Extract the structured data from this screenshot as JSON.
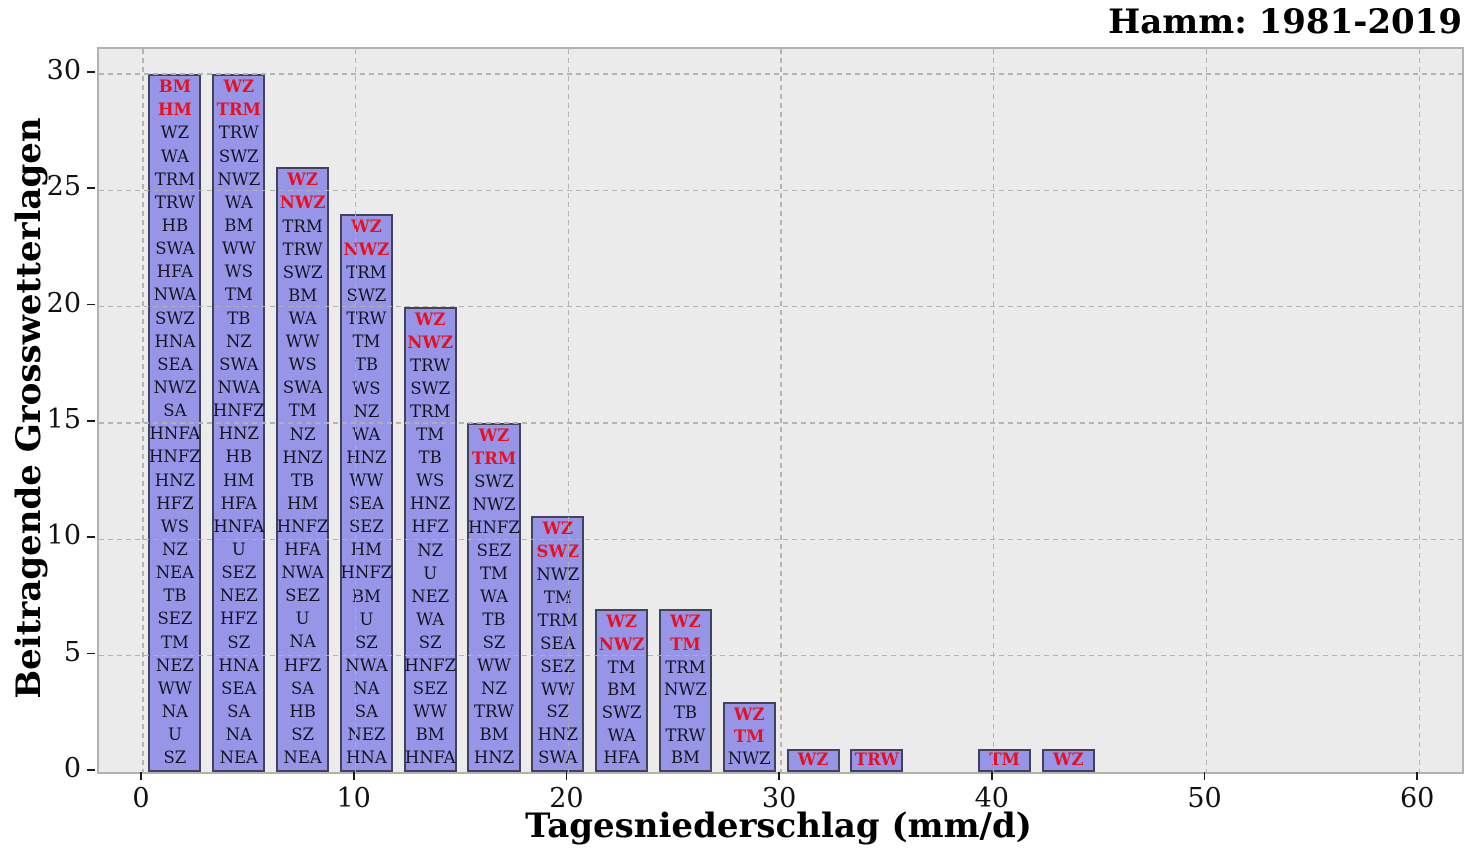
{
  "title": "Hamm: 1981-2019",
  "chart_data": {
    "type": "bar",
    "title": "Hamm: 1981-2019",
    "xlabel": "Tagesniederschlag (mm/d)",
    "ylabel": "Beitragende Grosswetterlagen",
    "xlim": [
      -2.07,
      62.01
    ],
    "ylim": [
      0,
      31.07
    ],
    "xticks": [
      0,
      10,
      20,
      30,
      40,
      50,
      60
    ],
    "yticks": [
      0,
      5,
      10,
      15,
      20,
      25,
      30
    ],
    "grid": "dashed",
    "legend": "none",
    "bar_width": 2.5,
    "colors": {
      "bar_fill": "#9795e8",
      "bar_border": "#42425a",
      "label_black": "#14141e",
      "label_red": "#e8101e",
      "plot_background": "#ebebeb",
      "grid_line": "#b2b2aa"
    },
    "bars": [
      {
        "x": 1.5,
        "height": 30,
        "red_labels": 2,
        "labels": [
          "BM",
          "HM",
          "WZ",
          "WA",
          "TRM",
          "TRW",
          "HB",
          "SWA",
          "HFA",
          "NWA",
          "SWZ",
          "HNA",
          "SEA",
          "NWZ",
          "SA",
          "HNFA",
          "HNFZ",
          "HNZ",
          "HFZ",
          "WS",
          "NZ",
          "NEA",
          "TB",
          "SEZ",
          "TM",
          "NEZ",
          "WW",
          "NA",
          "U",
          "SZ"
        ]
      },
      {
        "x": 4.5,
        "height": 30,
        "red_labels": 2,
        "labels": [
          "WZ",
          "TRM",
          "TRW",
          "SWZ",
          "NWZ",
          "WA",
          "BM",
          "WW",
          "WS",
          "TM",
          "TB",
          "NZ",
          "SWA",
          "NWA",
          "HNFZ",
          "HNZ",
          "HB",
          "HM",
          "HFA",
          "HNFA",
          "U",
          "SEZ",
          "NEZ",
          "HFZ",
          "SZ",
          "HNA",
          "SEA",
          "SA",
          "NA",
          "NEA"
        ]
      },
      {
        "x": 7.5,
        "height": 26,
        "red_labels": 2,
        "labels": [
          "WZ",
          "NWZ",
          "TRM",
          "TRW",
          "SWZ",
          "BM",
          "WA",
          "WW",
          "WS",
          "SWA",
          "TM",
          "NZ",
          "HNZ",
          "TB",
          "HM",
          "HNFZ",
          "HFA",
          "NWA",
          "SEZ",
          "U",
          "NA",
          "HFZ",
          "SA",
          "HB",
          "SZ",
          "NEA"
        ]
      },
      {
        "x": 10.5,
        "height": 24,
        "red_labels": 2,
        "labels": [
          "WZ",
          "NWZ",
          "TRM",
          "SWZ",
          "TRW",
          "TM",
          "TB",
          "WS",
          "NZ",
          "WA",
          "HNZ",
          "WW",
          "SEA",
          "SEZ",
          "HM",
          "HNFZ",
          "BM",
          "U",
          "SZ",
          "NWA",
          "NA",
          "SA",
          "NEZ",
          "HNA"
        ]
      },
      {
        "x": 13.5,
        "height": 20,
        "red_labels": 2,
        "labels": [
          "WZ",
          "NWZ",
          "TRW",
          "SWZ",
          "TRM",
          "TM",
          "TB",
          "WS",
          "HNZ",
          "HFZ",
          "NZ",
          "U",
          "NEZ",
          "WA",
          "SZ",
          "HNFZ",
          "SEZ",
          "WW",
          "BM",
          "HNFA"
        ]
      },
      {
        "x": 16.5,
        "height": 15,
        "red_labels": 2,
        "labels": [
          "WZ",
          "TRM",
          "SWZ",
          "NWZ",
          "HNFZ",
          "SEZ",
          "TM",
          "WA",
          "TB",
          "SZ",
          "WW",
          "NZ",
          "TRW",
          "BM",
          "HNZ"
        ]
      },
      {
        "x": 19.5,
        "height": 11,
        "red_labels": 2,
        "labels": [
          "WZ",
          "SWZ",
          "NWZ",
          "TM",
          "TRM",
          "SEA",
          "SEZ",
          "WW",
          "SZ",
          "HNZ",
          "SWA"
        ]
      },
      {
        "x": 22.5,
        "height": 7,
        "red_labels": 2,
        "labels": [
          "WZ",
          "NWZ",
          "TM",
          "BM",
          "SWZ",
          "WA",
          "HFA"
        ]
      },
      {
        "x": 25.5,
        "height": 7,
        "red_labels": 2,
        "labels": [
          "WZ",
          "TM",
          "TRM",
          "NWZ",
          "TB",
          "TRW",
          "BM"
        ]
      },
      {
        "x": 28.5,
        "height": 3,
        "red_labels": 2,
        "labels": [
          "WZ",
          "TM",
          "NWZ"
        ]
      },
      {
        "x": 31.5,
        "height": 1,
        "red_labels": 1,
        "labels": [
          "WZ"
        ]
      },
      {
        "x": 34.5,
        "height": 1,
        "red_labels": 1,
        "labels": [
          "TRW"
        ]
      },
      {
        "x": 40.5,
        "height": 1,
        "red_labels": 1,
        "labels": [
          "TM"
        ]
      },
      {
        "x": 43.5,
        "height": 1,
        "red_labels": 1,
        "labels": [
          "WZ"
        ]
      }
    ]
  }
}
